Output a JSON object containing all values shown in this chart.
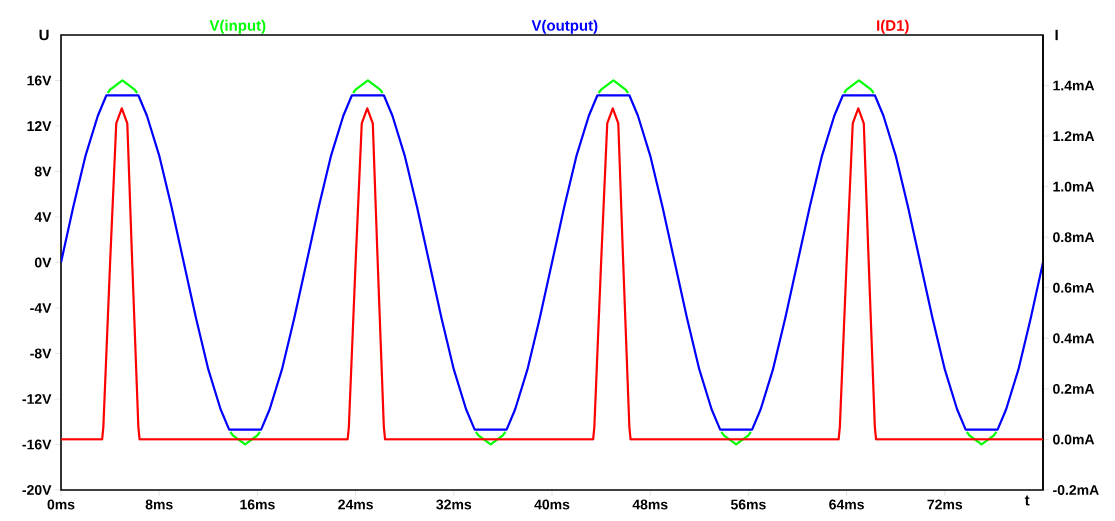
{
  "chart_data": {
    "type": "line",
    "xlabel": "t",
    "ylabel": "U",
    "y2label": "I",
    "grid": false,
    "xlim": [
      0,
      80
    ],
    "xticks": [
      {
        "value": 0,
        "label": "0ms"
      },
      {
        "value": 8,
        "label": "8ms"
      },
      {
        "value": 16,
        "label": "16ms"
      },
      {
        "value": 24,
        "label": "24ms"
      },
      {
        "value": 32,
        "label": "32ms"
      },
      {
        "value": 40,
        "label": "40ms"
      },
      {
        "value": 48,
        "label": "48ms"
      },
      {
        "value": 56,
        "label": "56ms"
      },
      {
        "value": 64,
        "label": "64ms"
      },
      {
        "value": 72,
        "label": "72ms"
      }
    ],
    "ylim": [
      -20,
      20
    ],
    "yticks": [
      {
        "value": -20,
        "label": "-20V"
      },
      {
        "value": -16,
        "label": "-16V"
      },
      {
        "value": -12,
        "label": "-12V"
      },
      {
        "value": -8,
        "label": "-8V"
      },
      {
        "value": -4,
        "label": "-4V"
      },
      {
        "value": 0,
        "label": "0V"
      },
      {
        "value": 4,
        "label": "4V"
      },
      {
        "value": 8,
        "label": "8V"
      },
      {
        "value": 12,
        "label": "12V"
      },
      {
        "value": 16,
        "label": "16V"
      }
    ],
    "y2lim": [
      -0.2,
      1.6
    ],
    "y2ticks": [
      {
        "value": -0.2,
        "label": "-0.2mA"
      },
      {
        "value": 0,
        "label": "0.0mA"
      },
      {
        "value": 0.2,
        "label": "0.2mA"
      },
      {
        "value": 0.4,
        "label": "0.4mA"
      },
      {
        "value": 0.6,
        "label": "0.6mA"
      },
      {
        "value": 0.8,
        "label": "0.8mA"
      },
      {
        "value": 1.0,
        "label": "1.0mA"
      },
      {
        "value": 1.2,
        "label": "1.2mA"
      },
      {
        "value": 1.4,
        "label": "1.4mA"
      }
    ],
    "series": [
      {
        "name": "V(input)",
        "color": "#00ff00",
        "axis": "y",
        "x": [
          3.8,
          4,
          5,
          6,
          6.2,
          10,
          13.8,
          14,
          15,
          16,
          16.2,
          20,
          23.8,
          24,
          25,
          26,
          26.2,
          30,
          33.8,
          34,
          35,
          36,
          36.2,
          40,
          43.8,
          44,
          45,
          46,
          46.2,
          50,
          53.8,
          54,
          55,
          56,
          56.2,
          60,
          63.8,
          64,
          65,
          66,
          66.2,
          70,
          73.8,
          74,
          75,
          76,
          76.2
        ],
        "values": [
          14.9,
          15.2,
          16,
          15.2,
          14.9,
          null,
          -14.9,
          -15.2,
          -16,
          -15.2,
          -14.9,
          null,
          14.9,
          15.2,
          16,
          15.2,
          14.9,
          null,
          -14.9,
          -15.2,
          -16,
          -15.2,
          -14.9,
          null,
          14.9,
          15.2,
          16,
          15.2,
          14.9,
          null,
          -14.9,
          -15.2,
          -16,
          -15.2,
          -14.9,
          null,
          14.9,
          15.2,
          16,
          15.2,
          14.9,
          null,
          -14.9,
          -15.2,
          -16,
          -15.2,
          -14.9
        ]
      },
      {
        "name": "V(output)",
        "color": "#0000ff",
        "axis": "y",
        "x": [
          0,
          1,
          2,
          3,
          3.7,
          4,
          5,
          6,
          6.3,
          7,
          8,
          9,
          10,
          11,
          12,
          13,
          13.7,
          14,
          15,
          16,
          16.3,
          17,
          18,
          19,
          20,
          21,
          22,
          23,
          23.7,
          24,
          25,
          26,
          26.3,
          27,
          28,
          29,
          30,
          31,
          32,
          33,
          33.7,
          34,
          35,
          36,
          36.3,
          37,
          38,
          39,
          40,
          41,
          42,
          43,
          43.7,
          44,
          45,
          46,
          46.3,
          47,
          48,
          49,
          50,
          51,
          52,
          53,
          53.7,
          54,
          55,
          56,
          56.3,
          57,
          58,
          59,
          60,
          61,
          62,
          63,
          63.7,
          64,
          65,
          66,
          66.3,
          67,
          68,
          69,
          70,
          71,
          72,
          73,
          73.7,
          74,
          75,
          76,
          76.3,
          77,
          78,
          79,
          80
        ],
        "values": [
          0,
          4.9,
          9.4,
          12.9,
          14.7,
          14.7,
          14.7,
          14.7,
          14.7,
          12.9,
          9.4,
          4.9,
          0,
          -4.9,
          -9.4,
          -12.9,
          -14.7,
          -14.7,
          -14.7,
          -14.7,
          -14.7,
          -12.9,
          -9.4,
          -4.9,
          0,
          4.9,
          9.4,
          12.9,
          14.7,
          14.7,
          14.7,
          14.7,
          14.7,
          12.9,
          9.4,
          4.9,
          0,
          -4.9,
          -9.4,
          -12.9,
          -14.7,
          -14.7,
          -14.7,
          -14.7,
          -14.7,
          -12.9,
          -9.4,
          -4.9,
          0,
          4.9,
          9.4,
          12.9,
          14.7,
          14.7,
          14.7,
          14.7,
          14.7,
          12.9,
          9.4,
          4.9,
          0,
          -4.9,
          -9.4,
          -12.9,
          -14.7,
          -14.7,
          -14.7,
          -14.7,
          -14.7,
          -12.9,
          -9.4,
          -4.9,
          0,
          4.9,
          9.4,
          12.9,
          14.7,
          14.7,
          14.7,
          14.7,
          14.7,
          12.9,
          9.4,
          4.9,
          0,
          -4.9,
          -9.4,
          -12.9,
          -14.7,
          -14.7,
          -14.7,
          -14.7,
          -14.7,
          -12.9,
          -9.4,
          -4.9,
          0
        ]
      },
      {
        "name": "I(D1)",
        "color": "#ff0000",
        "axis": "y2",
        "x": [
          0,
          3.35,
          3.45,
          4,
          4.5,
          4.95,
          5.4,
          5.8,
          6.3,
          6.4,
          23.35,
          23.45,
          24,
          24.5,
          24.95,
          25.4,
          25.8,
          26.3,
          26.4,
          43.35,
          43.45,
          44,
          44.5,
          44.95,
          45.4,
          45.8,
          46.3,
          46.4,
          63.35,
          63.45,
          64,
          64.5,
          64.95,
          65.4,
          65.8,
          66.3,
          66.4,
          80
        ],
        "values": [
          0,
          0,
          0.05,
          0.7,
          1.25,
          1.31,
          1.25,
          0.7,
          0.05,
          0,
          0,
          0.05,
          0.7,
          1.25,
          1.31,
          1.25,
          0.7,
          0.05,
          0,
          0,
          0.05,
          0.7,
          1.25,
          1.31,
          1.25,
          0.7,
          0.05,
          0,
          0,
          0.05,
          0.7,
          1.25,
          1.31,
          1.25,
          0.7,
          0.05,
          0,
          0
        ]
      }
    ]
  }
}
